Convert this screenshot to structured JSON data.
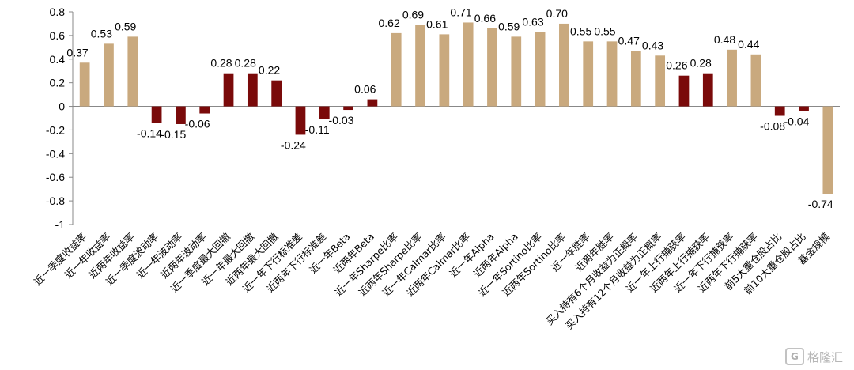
{
  "chart_data": {
    "type": "bar",
    "categories": [
      "近一季度收益率",
      "近一年收益率",
      "近两年收益率",
      "近一季度波动率",
      "近一年波动率",
      "近两年波动率",
      "近一季度最大回撤",
      "近一年最大回撤",
      "近两年最大回撤",
      "近一年下行标准差",
      "近两年下行标准差",
      "近一年Beta",
      "近两年Beta",
      "近一年Sharpe比率",
      "近两年Sharpe比率",
      "近一年Calmar比率",
      "近两年Calmar比率",
      "近一年Alpha",
      "近两年Alpha",
      "近一年Sortino比率",
      "近两年Sortino比率",
      "近一年胜率",
      "近两年胜率",
      "买入持有6个月收益为正概率",
      "买入持有12个月收益为正概率",
      "近一年上行捕获率",
      "近两年上行捕获率",
      "近一年下行捕获率",
      "近两年下行捕获率",
      "前5大重仓股占比",
      "前10大重仓股占比",
      "基金规模"
    ],
    "values": [
      0.37,
      0.53,
      0.59,
      -0.14,
      -0.15,
      -0.06,
      0.28,
      0.28,
      0.22,
      -0.24,
      -0.11,
      -0.03,
      0.06,
      0.62,
      0.69,
      0.61,
      0.71,
      0.66,
      0.59,
      0.63,
      0.7,
      0.55,
      0.55,
      0.47,
      0.43,
      0.26,
      0.28,
      0.48,
      0.44,
      -0.08,
      -0.04,
      -0.74
    ],
    "value_labels": [
      "0.37",
      "0.53",
      "0.59",
      "-0.14",
      "-0.15",
      "-0.06",
      "0.28",
      "0.28",
      "0.22",
      "-0.24",
      "-0.11",
      "-0.03",
      "0.06",
      "0.62",
      "0.69",
      "0.61",
      "0.71",
      "0.66",
      "0.59",
      "0.63",
      "0.70",
      "0.55",
      "0.55",
      "0.47",
      "0.43",
      "0.26",
      "0.28",
      "0.48",
      "0.44",
      "-0.08",
      "-0.04",
      "-0.74"
    ],
    "bar_colors": [
      "tan",
      "tan",
      "tan",
      "red",
      "red",
      "red",
      "red",
      "red",
      "red",
      "red",
      "red",
      "red",
      "red",
      "tan",
      "tan",
      "tan",
      "tan",
      "tan",
      "tan",
      "tan",
      "tan",
      "tan",
      "tan",
      "tan",
      "tan",
      "red",
      "red",
      "tan",
      "tan",
      "red",
      "red",
      "tan"
    ],
    "palette": {
      "tan": "#C9A97E",
      "red": "#7A0A0A"
    },
    "ylim": [
      -1,
      0.8
    ],
    "yticks": [
      "0.8",
      "0.6",
      "0.4",
      "0.2",
      "0",
      "-0.2",
      "-0.4",
      "-0.6",
      "-0.8",
      "-1"
    ],
    "title": "",
    "xlabel": "",
    "ylabel": "",
    "grid": false,
    "legend": "none"
  },
  "watermark": {
    "icon_glyph": "G",
    "text": "格隆汇"
  }
}
